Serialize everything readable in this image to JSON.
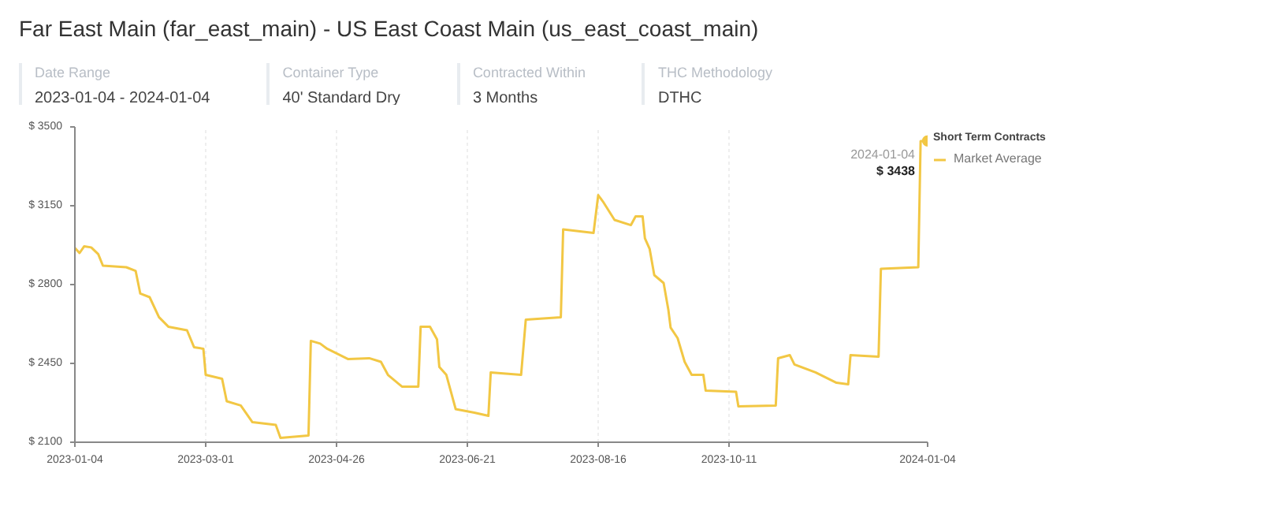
{
  "chart_data": {
    "type": "line",
    "title": "Far East Main (far_east_main) - US East Coast Main (us_east_coast_main)",
    "annotations": [
      "Date Range",
      "2023-01-04 - 2024-01-04",
      "Container Type",
      "40' Standard Dry",
      "Contracted Within",
      "3 Months",
      "THC Methodology",
      "DTHC",
      {
        "text": "2024-01-04",
        "x": "2024-01-04",
        "y": 3438
      },
      {
        "text": "$ 3438",
        "x": "2024-01-04",
        "y": 3438
      }
    ],
    "legend_title": "Short Term Contracts",
    "legend": "right",
    "grid": "x",
    "marker": "none",
    "line_style": "solid",
    "xlim": [
      "2023-01-04",
      "2024-01-04"
    ],
    "xticks": [
      "2023-01-04",
      "2023-03-01",
      "2023-04-26",
      "2023-06-21",
      "2023-08-16",
      "2023-10-11",
      "2024-01-04"
    ],
    "ylim": [
      2100,
      3500
    ],
    "yticks": [
      {
        "value": 2100,
        "label": "$ 2100"
      },
      {
        "value": 2450,
        "label": "$ 2450"
      },
      {
        "value": 2800,
        "label": "$ 2800"
      },
      {
        "value": 3150,
        "label": "$ 3150"
      },
      {
        "value": 3500,
        "label": "$ 3500"
      }
    ],
    "series": [
      {
        "name": "Market Average",
        "color": "#f2c744",
        "x": [
          "2023-01-04",
          "2023-01-06",
          "2023-01-08",
          "2023-01-11",
          "2023-01-14",
          "2023-01-16",
          "2023-01-26",
          "2023-01-30",
          "2023-02-01",
          "2023-02-05",
          "2023-02-09",
          "2023-02-13",
          "2023-02-21",
          "2023-02-24",
          "2023-02-28",
          "2023-03-01",
          "2023-03-08",
          "2023-03-10",
          "2023-03-16",
          "2023-03-21",
          "2023-03-31",
          "2023-04-02",
          "2023-04-14",
          "2023-04-15",
          "2023-04-19",
          "2023-04-22",
          "2023-05-01",
          "2023-05-10",
          "2023-05-15",
          "2023-05-18",
          "2023-05-24",
          "2023-05-31",
          "2023-06-01",
          "2023-06-05",
          "2023-06-08",
          "2023-06-09",
          "2023-06-12",
          "2023-06-16",
          "2023-06-24",
          "2023-06-30",
          "2023-07-01",
          "2023-07-14",
          "2023-07-16",
          "2023-07-31",
          "2023-08-01",
          "2023-08-14",
          "2023-08-16",
          "2023-08-18",
          "2023-08-23",
          "2023-08-30",
          "2023-09-01",
          "2023-09-04",
          "2023-09-05",
          "2023-09-07",
          "2023-09-09",
          "2023-09-13",
          "2023-09-15",
          "2023-09-16",
          "2023-09-19",
          "2023-09-22",
          "2023-09-25",
          "2023-09-30",
          "2023-10-01",
          "2023-10-14",
          "2023-10-15",
          "2023-10-31",
          "2023-11-01",
          "2023-11-06",
          "2023-11-08",
          "2023-11-17",
          "2023-11-26",
          "2023-12-01",
          "2023-12-02",
          "2023-12-14",
          "2023-12-15",
          "2023-12-31",
          "2024-01-01",
          "2024-01-04"
        ],
        "values": [
          2963,
          2940,
          2970,
          2965,
          2935,
          2884,
          2877,
          2861,
          2760,
          2744,
          2655,
          2613,
          2597,
          2522,
          2515,
          2399,
          2382,
          2282,
          2263,
          2189,
          2177,
          2119,
          2130,
          2550,
          2538,
          2515,
          2469,
          2473,
          2457,
          2399,
          2347,
          2347,
          2613,
          2613,
          2557,
          2434,
          2399,
          2247,
          2231,
          2217,
          2410,
          2399,
          2644,
          2655,
          3045,
          3029,
          3197,
          3169,
          3087,
          3064,
          3103,
          3103,
          3005,
          2959,
          2842,
          2807,
          2690,
          2609,
          2562,
          2457,
          2399,
          2399,
          2329,
          2324,
          2259,
          2263,
          2473,
          2487,
          2445,
          2410,
          2364,
          2357,
          2487,
          2480,
          2870,
          2877,
          3437,
          3438
        ]
      }
    ]
  }
}
